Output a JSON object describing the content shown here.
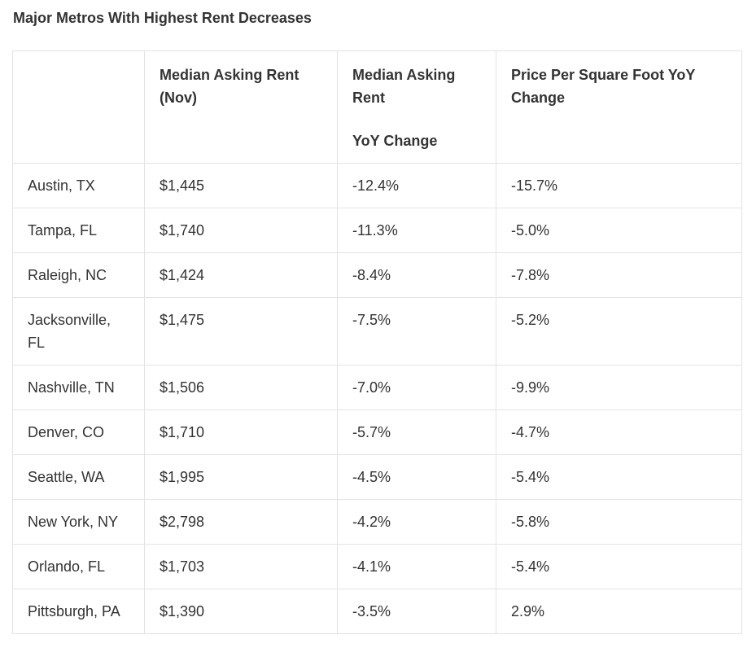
{
  "title": "Major Metros With Highest Rent Decreases",
  "table": {
    "headers": {
      "col1": "",
      "col2": "Median Asking Rent (Nov)",
      "col3_line1": "Median Asking Rent",
      "col3_line2": "YoY Change",
      "col4": "Price Per Square Foot YoY Change"
    },
    "rows": [
      {
        "metro": "Austin, TX",
        "rent": "$1,445",
        "yoy": "-12.4%",
        "ppsf": "-15.7%"
      },
      {
        "metro": "Tampa, FL",
        "rent": "$1,740",
        "yoy": "-11.3%",
        "ppsf": "-5.0%"
      },
      {
        "metro": "Raleigh, NC",
        "rent": "$1,424",
        "yoy": "-8.4%",
        "ppsf": "-7.8%"
      },
      {
        "metro": "Jacksonville, FL",
        "rent": "$1,475",
        "yoy": "-7.5%",
        "ppsf": "-5.2%"
      },
      {
        "metro": "Nashville, TN",
        "rent": "$1,506",
        "yoy": "-7.0%",
        "ppsf": "-9.9%"
      },
      {
        "metro": "Denver, CO",
        "rent": "$1,710",
        "yoy": "-5.7%",
        "ppsf": "-4.7%"
      },
      {
        "metro": "Seattle, WA",
        "rent": "$1,995",
        "yoy": "-4.5%",
        "ppsf": "-5.4%"
      },
      {
        "metro": "New York, NY",
        "rent": "$2,798",
        "yoy": "-4.2%",
        "ppsf": "-5.8%"
      },
      {
        "metro": "Orlando, FL",
        "rent": "$1,703",
        "yoy": "-4.1%",
        "ppsf": "-5.4%"
      },
      {
        "metro": "Pittsburgh, PA",
        "rent": "$1,390",
        "yoy": "-3.5%",
        "ppsf": "2.9%"
      }
    ]
  }
}
